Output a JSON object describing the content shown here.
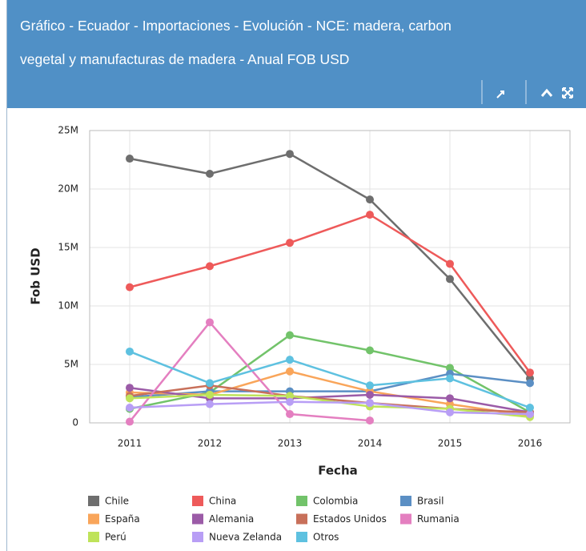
{
  "header": {
    "title_line1": "Gráfico - Ecuador - Importaciones - Evolución - NCE: madera, carbon",
    "title_line2": "vegetal y manufacturas de madera - Anual FOB USD"
  },
  "chart_data": {
    "type": "line",
    "xlabel": "Fecha",
    "ylabel": "Fob USD",
    "grid": true,
    "categories": [
      "2011",
      "2012",
      "2013",
      "2014",
      "2015",
      "2016"
    ],
    "ylim": [
      0,
      25000000
    ],
    "yticks": [
      0,
      {
        "value": 5000000,
        "label": "5M"
      },
      {
        "value": 10000000,
        "label": "10M"
      },
      {
        "value": 15000000,
        "label": "15M"
      },
      {
        "value": 20000000,
        "label": "20M"
      },
      {
        "value": 25000000,
        "label": "25M"
      }
    ],
    "series": [
      {
        "name": "Chile",
        "color": "#6e6e6e",
        "values": [
          22600000,
          21300000,
          23000000,
          19100000,
          12300000,
          3800000
        ]
      },
      {
        "name": "China",
        "color": "#ee5a5a",
        "values": [
          11600000,
          13400000,
          15400000,
          17800000,
          13600000,
          4300000
        ]
      },
      {
        "name": "Colombia",
        "color": "#72c36a",
        "values": [
          1200000,
          2600000,
          7500000,
          6200000,
          4700000,
          900000
        ]
      },
      {
        "name": "Brasil",
        "color": "#5b8fc4",
        "values": [
          2200000,
          2700000,
          2700000,
          2700000,
          4200000,
          3400000
        ]
      },
      {
        "name": "España",
        "color": "#f9a55a",
        "values": [
          2600000,
          2400000,
          4400000,
          2700000,
          1600000,
          600000
        ]
      },
      {
        "name": "Alemania",
        "color": "#9b5ba7",
        "values": [
          3000000,
          2100000,
          2100000,
          2400000,
          2100000,
          900000
        ]
      },
      {
        "name": "Estados Unidos",
        "color": "#c8705a",
        "values": [
          2300000,
          3200000,
          2300000,
          1700000,
          1200000,
          900000
        ]
      },
      {
        "name": "Rumania",
        "color": "#e47fc0",
        "values": [
          100000,
          8600000,
          750000,
          200000,
          null,
          null
        ]
      },
      {
        "name": "Perú",
        "color": "#bfe35a",
        "values": [
          2100000,
          2400000,
          2300000,
          1400000,
          1200000,
          500000
        ]
      },
      {
        "name": "Nueva Zelanda",
        "color": "#b89ef5",
        "values": [
          1300000,
          1600000,
          1800000,
          1700000,
          900000,
          750000
        ]
      },
      {
        "name": "Otros",
        "color": "#5ec1e0",
        "values": [
          6100000,
          3400000,
          5400000,
          3200000,
          3800000,
          1300000
        ]
      }
    ]
  }
}
